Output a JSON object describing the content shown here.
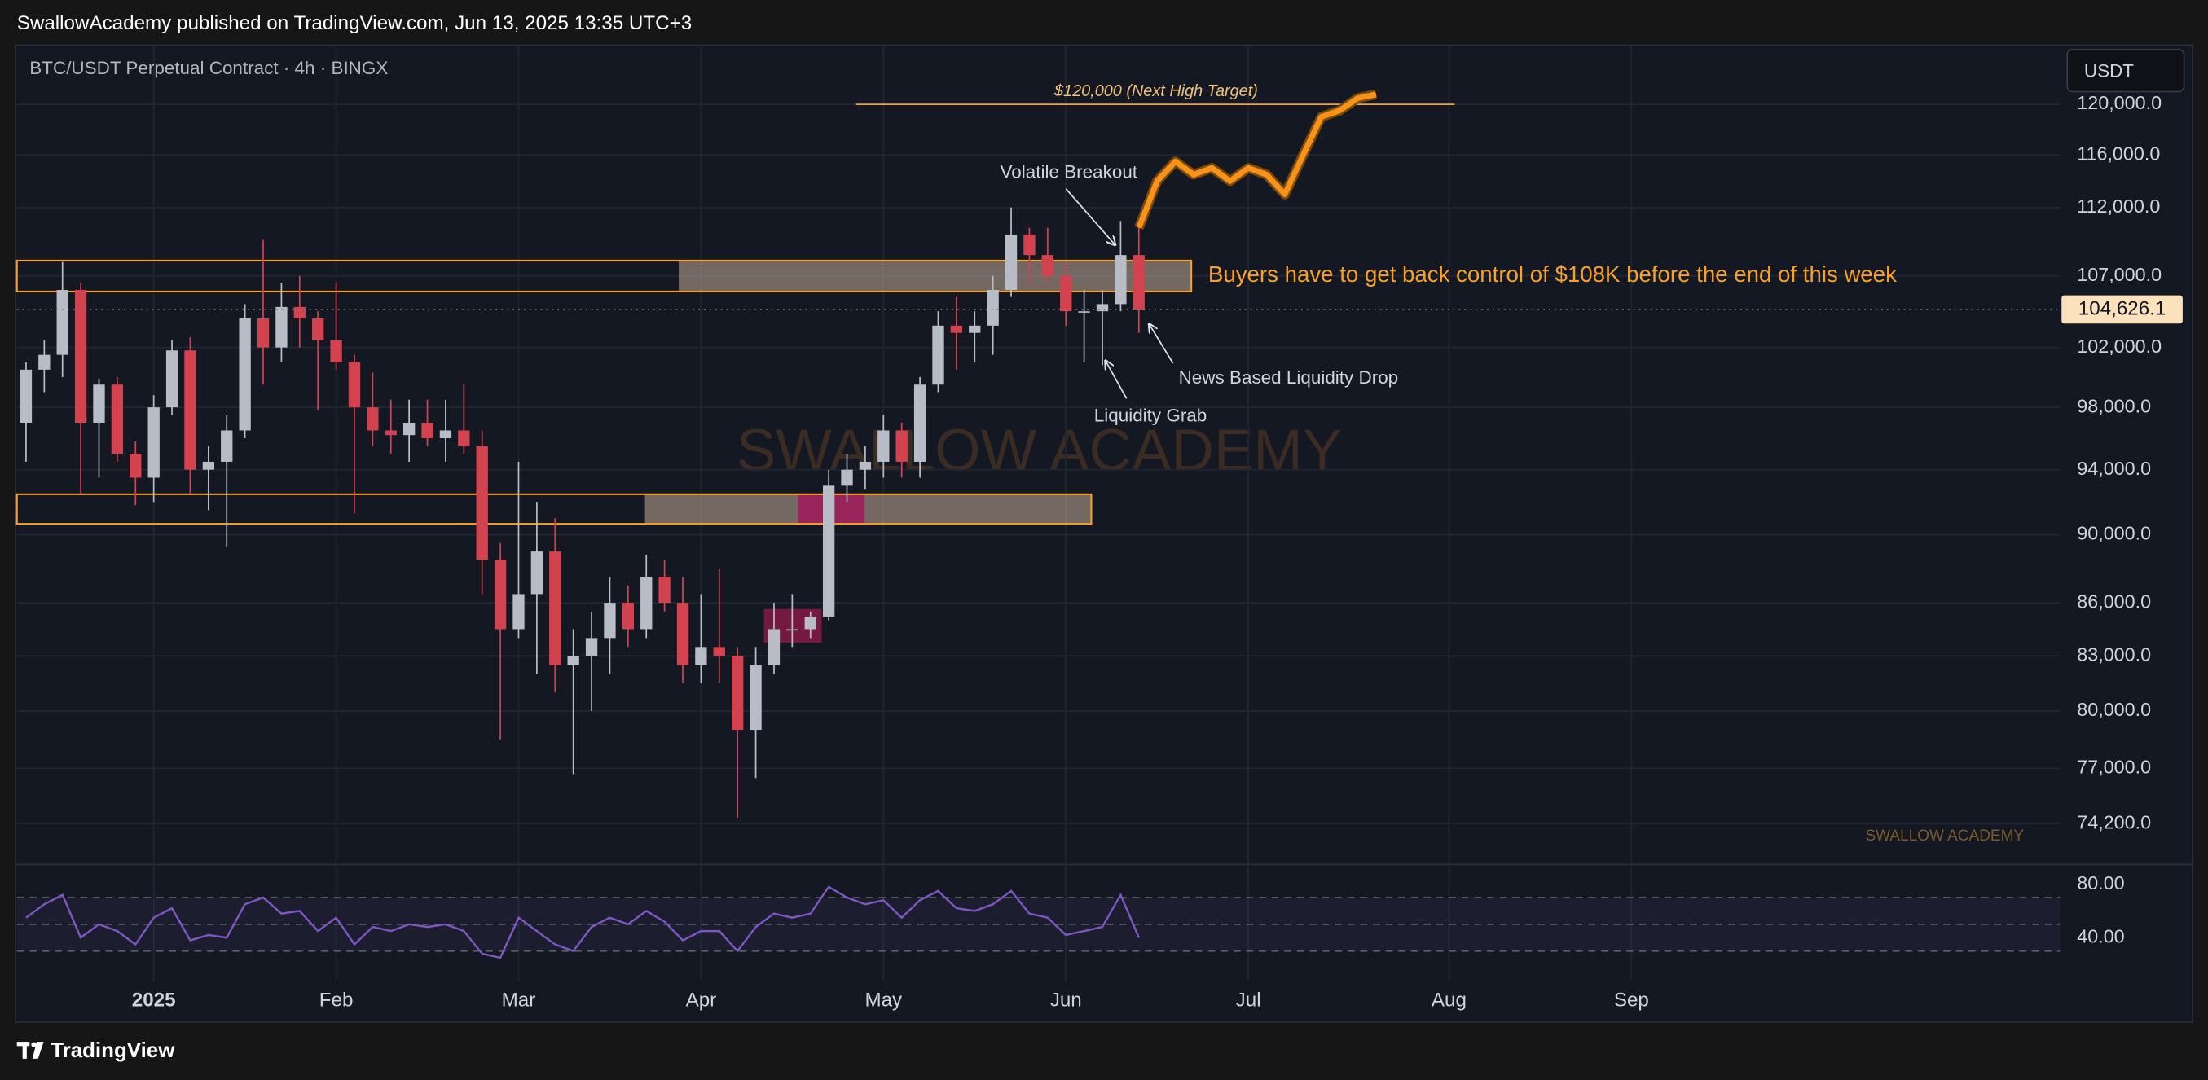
{
  "header": {
    "published": "SwallowAcademy published on TradingView.com, Jun 13, 2025 13:35 UTC+3"
  },
  "footer": {
    "brand": "TradingView"
  },
  "chart_data": [
    {
      "type": "candlestick",
      "title": "BTC/USDT Perpetual Contract · 4h · BINGX",
      "currency": "USDT",
      "watermark": "SWALLOW ACADEMY",
      "signature": "SWALLOW ACADEMY",
      "annotations": [
        "Volatile Breakout",
        "Buyers have to get back control of $108K before the end of this week",
        "News Based Liquidity Drop",
        "Liquidity Grab"
      ],
      "target": {
        "value": 120000,
        "label": "$120,000 (Next High Target)"
      },
      "last_price": {
        "value": 104626.1,
        "label": "104,626.1"
      },
      "log_scale": true,
      "grid": true,
      "up_color": "#b8bcc6",
      "down_color": "#d2434f",
      "ylim": [
        72270,
        123900
      ],
      "yticks": [
        {
          "value": 74200,
          "label": "74,200.0"
        },
        {
          "value": 77000,
          "label": "77,000.0"
        },
        {
          "value": 80000,
          "label": "80,000.0"
        },
        {
          "value": 83000,
          "label": "83,000.0"
        },
        {
          "value": 86000,
          "label": "86,000.0"
        },
        {
          "value": 90000,
          "label": "90,000.0"
        },
        {
          "value": 94000,
          "label": "94,000.0"
        },
        {
          "value": 98000,
          "label": "98,000.0"
        },
        {
          "value": 102000,
          "label": "102,000.0"
        },
        {
          "value": 107000,
          "label": "107,000.0"
        },
        {
          "value": 112000,
          "label": "112,000.0"
        },
        {
          "value": 116000,
          "label": "116,000.0"
        },
        {
          "value": 120000,
          "label": "120,000.0"
        }
      ],
      "categories": [
        null,
        null,
        null,
        null,
        null,
        null,
        null,
        "2025",
        null,
        null,
        null,
        null,
        null,
        null,
        null,
        null,
        null,
        "Feb",
        null,
        null,
        null,
        null,
        null,
        null,
        null,
        null,
        null,
        "Mar",
        null,
        null,
        null,
        null,
        null,
        null,
        null,
        null,
        null,
        "Apr",
        null,
        null,
        null,
        null,
        null,
        null,
        null,
        null,
        null,
        "May",
        null,
        null,
        null,
        null,
        null,
        null,
        null,
        null,
        null,
        "Jun",
        null,
        null,
        null,
        null,
        null,
        null,
        null,
        null,
        null,
        "Jul",
        null,
        null,
        null,
        null,
        null,
        null,
        null,
        null,
        null,
        null,
        "Aug",
        null,
        null,
        null,
        null,
        null,
        null,
        null,
        null,
        null,
        "Sep",
        null,
        null,
        null,
        null,
        null,
        null,
        null,
        null,
        null,
        null,
        null,
        null,
        null,
        null,
        null,
        null,
        null,
        null,
        null,
        null,
        null,
        null,
        null
      ],
      "open": [
        97000,
        100500,
        101500,
        106000,
        97000,
        99500,
        95000,
        93500,
        98000,
        101800,
        94000,
        94500,
        96500,
        104000,
        102000,
        104800,
        104000,
        102500,
        101000,
        98000,
        96500,
        96200,
        97000,
        96000,
        96500,
        95500,
        88500,
        84500,
        86500,
        89000,
        82500,
        83000,
        84000,
        86000,
        84500,
        87500,
        86000,
        82500,
        83500,
        83000,
        79000,
        82500,
        84500,
        84500,
        85200,
        93000,
        94000,
        94500,
        96500,
        94500,
        99500,
        103500,
        103000,
        103500,
        106000,
        110000,
        108500,
        107000,
        104500,
        104500,
        105000,
        108500,
        null,
        null,
        null,
        null,
        null,
        null,
        null,
        null,
        null,
        null,
        null,
        null,
        null,
        null,
        null,
        null,
        null,
        null,
        null,
        null,
        null,
        null,
        null,
        null,
        null,
        null,
        null,
        null,
        null,
        null,
        null,
        null,
        null,
        null,
        null,
        null,
        null,
        null,
        null,
        null,
        null,
        null,
        null,
        null,
        null,
        null,
        null,
        null,
        null,
        null
      ],
      "high": [
        101000,
        102500,
        108000,
        106500,
        99900,
        100000,
        95800,
        98800,
        102500,
        102700,
        95500,
        97500,
        105000,
        109600,
        106500,
        107000,
        104500,
        106500,
        101500,
        100300,
        98500,
        98500,
        98500,
        98500,
        99500,
        96500,
        89500,
        94500,
        92000,
        91000,
        84500,
        85500,
        87500,
        87000,
        88800,
        88500,
        87500,
        86500,
        88000,
        83500,
        83500,
        86000,
        86500,
        85500,
        94000,
        95000,
        95500,
        97500,
        97000,
        100000,
        104500,
        105500,
        104500,
        107000,
        112000,
        110500,
        110500,
        108000,
        106000,
        106000,
        111000,
        110500,
        null,
        null,
        null,
        null,
        null,
        null,
        null,
        null,
        null,
        null,
        null,
        null,
        null,
        null,
        null,
        null,
        null,
        null,
        null,
        null,
        null,
        null,
        null,
        null,
        null,
        null,
        null,
        null,
        null,
        null,
        null,
        null,
        null,
        null,
        null,
        null,
        null,
        null,
        null,
        null,
        null,
        null,
        null,
        null,
        null,
        null,
        null,
        null,
        null,
        null
      ],
      "low": [
        94500,
        99000,
        100000,
        92500,
        93500,
        94500,
        91800,
        92000,
        97500,
        92500,
        91500,
        89300,
        96000,
        99500,
        101000,
        102000,
        97800,
        100500,
        91300,
        95500,
        95000,
        94500,
        95500,
        94500,
        95000,
        86500,
        78500,
        84000,
        82000,
        81000,
        76700,
        80000,
        82000,
        83500,
        84000,
        85500,
        81500,
        81500,
        81500,
        74500,
        76500,
        82000,
        83500,
        84000,
        85000,
        92000,
        92800,
        93500,
        93500,
        93500,
        99000,
        100500,
        101000,
        101500,
        105500,
        106500,
        106500,
        103500,
        101000,
        100800,
        104500,
        103000,
        null,
        null,
        null,
        null,
        null,
        null,
        null,
        null,
        null,
        null,
        null,
        null,
        null,
        null,
        null,
        null,
        null,
        null,
        null,
        null,
        null,
        null,
        null,
        null,
        null,
        null,
        null,
        null,
        null,
        null,
        null,
        null,
        null,
        null,
        null,
        null,
        null,
        null,
        null,
        null,
        null,
        null,
        null,
        null,
        null,
        null,
        null,
        null,
        null,
        null
      ],
      "close": [
        100500,
        101500,
        106000,
        97000,
        99500,
        95000,
        93500,
        98000,
        101800,
        94000,
        94500,
        96500,
        104000,
        102000,
        104800,
        104000,
        102500,
        101000,
        98000,
        96500,
        96200,
        97000,
        96000,
        96500,
        95500,
        88500,
        84500,
        86500,
        89000,
        82500,
        83000,
        84000,
        86000,
        84500,
        87500,
        86000,
        82500,
        83500,
        83000,
        79000,
        82500,
        84500,
        84500,
        85200,
        93000,
        94000,
        94500,
        96500,
        94500,
        99500,
        103500,
        103000,
        103500,
        106000,
        110000,
        108500,
        107000,
        104500,
        104500,
        105000,
        108500,
        104626.1,
        null,
        null,
        null,
        null,
        null,
        null,
        null,
        null,
        null,
        null,
        null,
        null,
        null,
        null,
        null,
        null,
        null,
        null,
        null,
        null,
        null,
        null,
        null,
        null,
        null,
        null,
        null,
        null,
        null,
        null,
        null,
        null,
        null,
        null,
        null,
        null,
        null,
        null,
        null,
        null,
        null,
        null,
        null,
        null,
        null,
        null,
        null,
        null,
        null,
        null
      ],
      "projection": {
        "color": "#f7931a",
        "values": [
          null,
          null,
          null,
          null,
          null,
          null,
          null,
          null,
          null,
          null,
          null,
          null,
          null,
          null,
          null,
          null,
          null,
          null,
          null,
          null,
          null,
          null,
          null,
          null,
          null,
          null,
          null,
          null,
          null,
          null,
          null,
          null,
          null,
          null,
          null,
          null,
          null,
          null,
          null,
          null,
          null,
          null,
          null,
          null,
          null,
          null,
          null,
          null,
          null,
          null,
          null,
          null,
          null,
          null,
          null,
          null,
          null,
          null,
          null,
          null,
          null,
          110500,
          114000,
          115500,
          114500,
          115000,
          114000,
          115000,
          114500,
          113000,
          116000,
          119000,
          119500,
          120500,
          120800,
          null,
          null,
          null,
          null,
          null,
          null,
          null,
          null,
          null,
          null,
          null,
          null,
          null,
          null,
          null,
          null,
          null,
          null,
          null,
          null,
          null,
          null,
          null,
          null,
          null,
          null,
          null,
          null,
          null,
          null,
          null,
          null,
          null,
          null,
          null,
          null,
          null,
          null
        ]
      }
    },
    {
      "type": "line",
      "color": "#7e57c2",
      "ylim": [
        7.4,
        93.7
      ],
      "yticks": [
        {
          "value": 80,
          "label": "80.00"
        },
        {
          "value": 40,
          "label": "40.00"
        }
      ],
      "bands": [
        30,
        50,
        70
      ],
      "values": [
        55,
        65,
        72,
        40,
        50,
        45,
        35,
        55,
        62,
        38,
        42,
        40,
        65,
        70,
        58,
        60,
        45,
        55,
        35,
        48,
        45,
        50,
        48,
        50,
        45,
        28,
        25,
        55,
        45,
        35,
        30,
        48,
        55,
        50,
        60,
        52,
        38,
        45,
        45,
        30,
        48,
        58,
        55,
        58,
        78,
        70,
        65,
        68,
        55,
        68,
        75,
        62,
        60,
        65,
        75,
        58,
        55,
        42,
        45,
        48,
        72,
        40,
        null,
        null,
        null,
        null,
        null,
        null,
        null,
        null,
        null,
        null,
        null,
        null,
        null,
        null,
        null,
        null,
        null,
        null,
        null,
        null,
        null,
        null,
        null,
        null,
        null,
        null,
        null,
        null,
        null,
        null,
        null,
        null,
        null,
        null,
        null,
        null,
        null,
        null,
        null,
        null,
        null,
        null,
        null,
        null,
        null,
        null,
        null,
        null,
        null,
        null
      ]
    }
  ]
}
